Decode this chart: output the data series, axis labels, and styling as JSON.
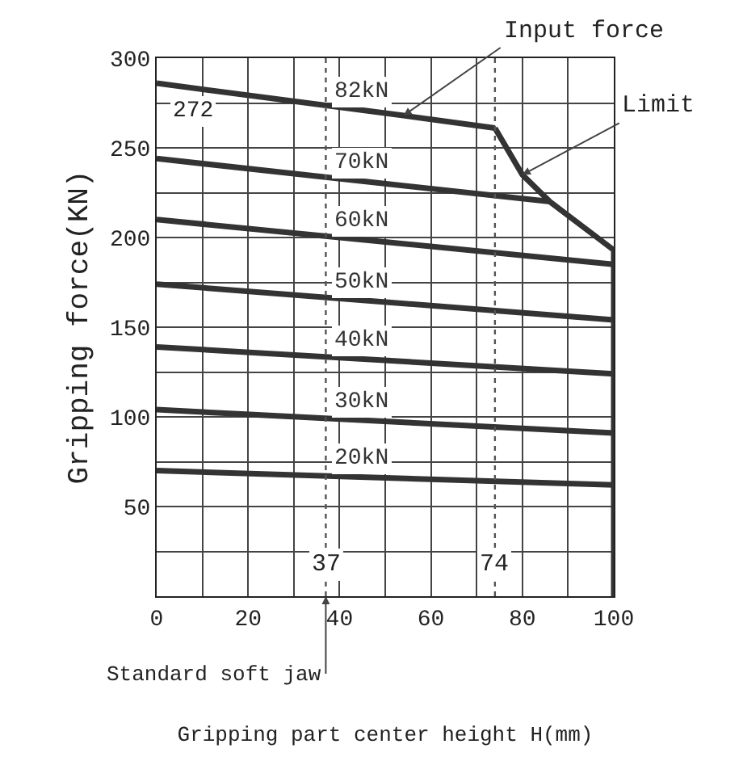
{
  "chart_data": {
    "type": "line",
    "xlabel": "Gripping part center height H(mm)",
    "ylabel": "Gripping force(KN)",
    "xlim": [
      0,
      100
    ],
    "ylim": [
      0,
      300
    ],
    "xticks": [
      {
        "value": 0,
        "label": "0"
      },
      {
        "value": 10,
        "label": null
      },
      20,
      {
        "value": 30,
        "label": null
      },
      40,
      {
        "value": 50,
        "label": null
      },
      60,
      {
        "value": 70,
        "label": null
      },
      80,
      {
        "value": 90,
        "label": null
      },
      100
    ],
    "yticks": [
      {
        "value": 0,
        "label": null
      },
      {
        "value": 25,
        "label": null
      },
      50,
      {
        "value": 75,
        "label": null
      },
      100,
      {
        "value": 125,
        "label": null
      },
      150,
      {
        "value": 175,
        "label": null
      },
      200,
      {
        "value": 225,
        "label": null
      },
      250,
      {
        "value": 275,
        "label": null
      },
      300
    ],
    "grid": true,
    "legend": false,
    "marker": "none",
    "line_style": "solid",
    "series": [
      {
        "name": "82kN",
        "color": "#333333",
        "x": [
          0,
          54,
          74
        ],
        "values": [
          286,
          268,
          261
        ]
      },
      {
        "name": "70kN",
        "color": "#333333",
        "x": [
          0,
          86
        ],
        "values": [
          244,
          220
        ]
      },
      {
        "name": "60kN",
        "color": "#333333",
        "x": [
          0,
          100
        ],
        "values": [
          210,
          185
        ]
      },
      {
        "name": "50kN",
        "color": "#333333",
        "x": [
          0,
          100
        ],
        "values": [
          174,
          154
        ]
      },
      {
        "name": "40kN",
        "color": "#333333",
        "x": [
          0,
          100
        ],
        "values": [
          139,
          124
        ]
      },
      {
        "name": "30kN",
        "color": "#333333",
        "x": [
          0,
          100
        ],
        "values": [
          104,
          91
        ]
      },
      {
        "name": "20kN",
        "color": "#333333",
        "x": [
          0,
          100
        ],
        "values": [
          70,
          62
        ]
      },
      {
        "color": "#333333",
        "x": [
          74,
          80,
          86,
          100,
          100
        ],
        "values": [
          261,
          235,
          220,
          193,
          0
        ]
      }
    ],
    "ref_lines": [
      {
        "axis": "x",
        "value": 37,
        "label": "37",
        "line_style": "dotted",
        "color": "#555555"
      },
      {
        "axis": "x",
        "value": 74,
        "label": "74",
        "line_style": "dotted",
        "color": "#555555"
      }
    ],
    "annotations": [
      "272",
      {
        "text": "Input force",
        "x": 54,
        "y": 268
      },
      {
        "text": "Limit",
        "x": 80,
        "y": 235
      },
      {
        "text": "Standard soft jaw",
        "x": 37,
        "y": 0
      }
    ]
  }
}
